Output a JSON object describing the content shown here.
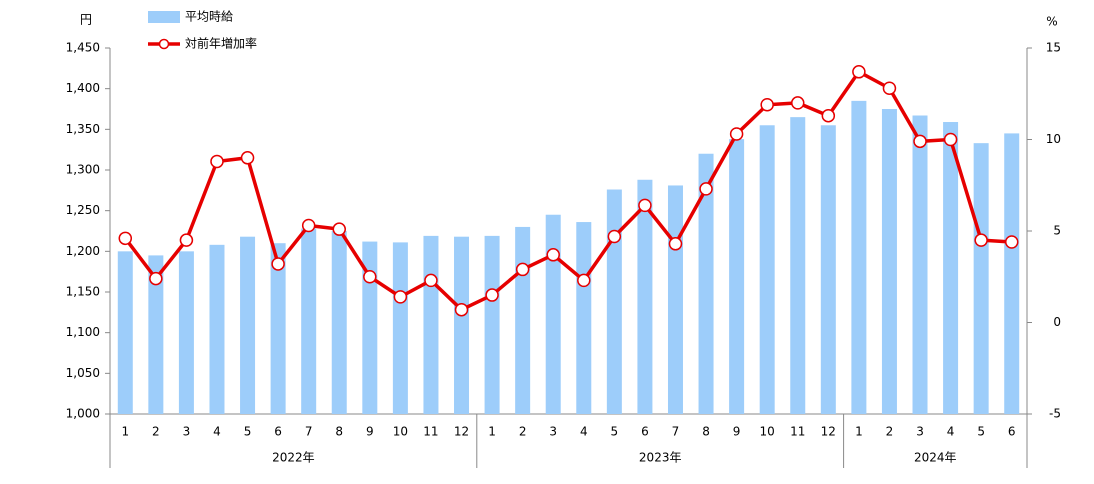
{
  "chart_data": {
    "type": "bar-line",
    "y_label": "円",
    "y2_label": "%",
    "categories": [
      "1",
      "2",
      "3",
      "4",
      "5",
      "6",
      "7",
      "8",
      "9",
      "10",
      "11",
      "12",
      "1",
      "2",
      "3",
      "4",
      "5",
      "6",
      "7",
      "8",
      "9",
      "10",
      "11",
      "12",
      "1",
      "2",
      "3",
      "4",
      "5",
      "6"
    ],
    "groups": [
      {
        "name": "2022年",
        "size": 12
      },
      {
        "name": "2023年",
        "size": 12
      },
      {
        "name": "2024年",
        "size": 6
      }
    ],
    "series": [
      {
        "name": "平均時給",
        "type": "bar",
        "color": "#9dcdfa",
        "values": [
          1200,
          1195,
          1200,
          1208,
          1218,
          1210,
          1228,
          1225,
          1212,
          1211,
          1219,
          1218,
          1219,
          1230,
          1245,
          1236,
          1276,
          1288,
          1281,
          1320,
          1338,
          1355,
          1365,
          1355,
          1385,
          1375,
          1367,
          1359,
          1333,
          1345
        ]
      },
      {
        "name": "対前年増加率",
        "type": "line",
        "axis": "y2",
        "color": "#e60000",
        "values": [
          4.6,
          2.4,
          4.5,
          8.8,
          9.0,
          3.2,
          5.3,
          5.1,
          2.5,
          1.4,
          2.3,
          0.7,
          1.5,
          2.9,
          3.7,
          2.3,
          4.7,
          6.4,
          4.3,
          7.3,
          10.3,
          11.9,
          12.0,
          11.3,
          13.7,
          12.8,
          9.9,
          10.0,
          4.5,
          4.4
        ]
      }
    ],
    "ylim": [
      1000,
      1450
    ],
    "yticks": [
      {
        "value": 1000,
        "label": "1,000"
      },
      {
        "value": 1050,
        "label": "1,050"
      },
      {
        "value": 1100,
        "label": "1,100"
      },
      {
        "value": 1150,
        "label": "1,150"
      },
      {
        "value": 1200,
        "label": "1,200"
      },
      {
        "value": 1250,
        "label": "1,250"
      },
      {
        "value": 1300,
        "label": "1,300"
      },
      {
        "value": 1350,
        "label": "1,350"
      },
      {
        "value": 1400,
        "label": "1,400"
      },
      {
        "value": 1450,
        "label": "1,450"
      }
    ],
    "y2lim": [
      -5,
      15
    ],
    "y2ticks": [
      -5,
      0,
      5,
      10,
      15
    ],
    "legend": "top-left"
  }
}
